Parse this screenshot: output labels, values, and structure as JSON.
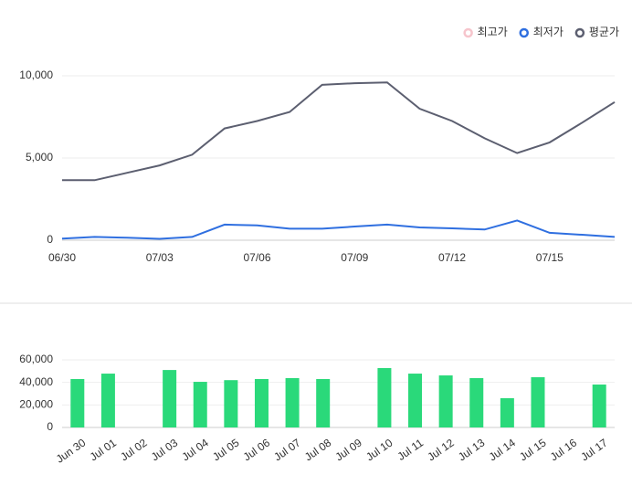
{
  "chart_data": [
    {
      "type": "line",
      "categories": [
        "06/30",
        null,
        null,
        "07/03",
        null,
        null,
        "07/06",
        null,
        null,
        "07/09",
        null,
        null,
        "07/12",
        null,
        null,
        "07/15",
        null,
        null
      ],
      "series": [
        {
          "name": "최고가",
          "color": "#f5b7c0",
          "visible": false
        },
        {
          "name": "최저가",
          "color": "#2f6fe0",
          "values": [
            100,
            200,
            150,
            80,
            200,
            950,
            900,
            700,
            700,
            830,
            950,
            780,
            720,
            650,
            1200,
            450,
            330,
            200
          ]
        },
        {
          "name": "평균가",
          "color": "#5c5f70",
          "values": [
            3650,
            3650,
            4100,
            4550,
            5200,
            6800,
            7250,
            7800,
            9450,
            9550,
            9600,
            8000,
            7250,
            6200,
            5300,
            5950,
            7150,
            8400
          ]
        }
      ],
      "ylim": [
        0,
        10000
      ],
      "yticks": [
        0,
        {
          "value": 5000,
          "label": "5,000"
        },
        {
          "value": 10000,
          "label": "10,000"
        }
      ],
      "grid": true,
      "legend": "top-right"
    },
    {
      "type": "bar",
      "categories": [
        "Jun 30",
        "Jul 01",
        "Jul 02",
        "Jul 03",
        "Jul 04",
        "Jul 05",
        "Jul 06",
        "Jul 07",
        "Jul 08",
        "Jul 09",
        "Jul 10",
        "Jul 11",
        "Jul 12",
        "Jul 13",
        "Jul 14",
        "Jul 15",
        "Jul 16",
        "Jul 17"
      ],
      "values": [
        43000,
        47800,
        null,
        51000,
        40500,
        42000,
        43000,
        43800,
        43000,
        null,
        52700,
        47800,
        46200,
        43800,
        26000,
        44600,
        null,
        38100
      ],
      "color": "#2ad97a",
      "ylim": [
        0,
        60000
      ],
      "yticks": [
        0,
        {
          "value": 20000,
          "label": "20,000"
        },
        {
          "value": 40000,
          "label": "40,000"
        },
        {
          "value": 60000,
          "label": "60,000"
        }
      ],
      "grid": true
    }
  ]
}
